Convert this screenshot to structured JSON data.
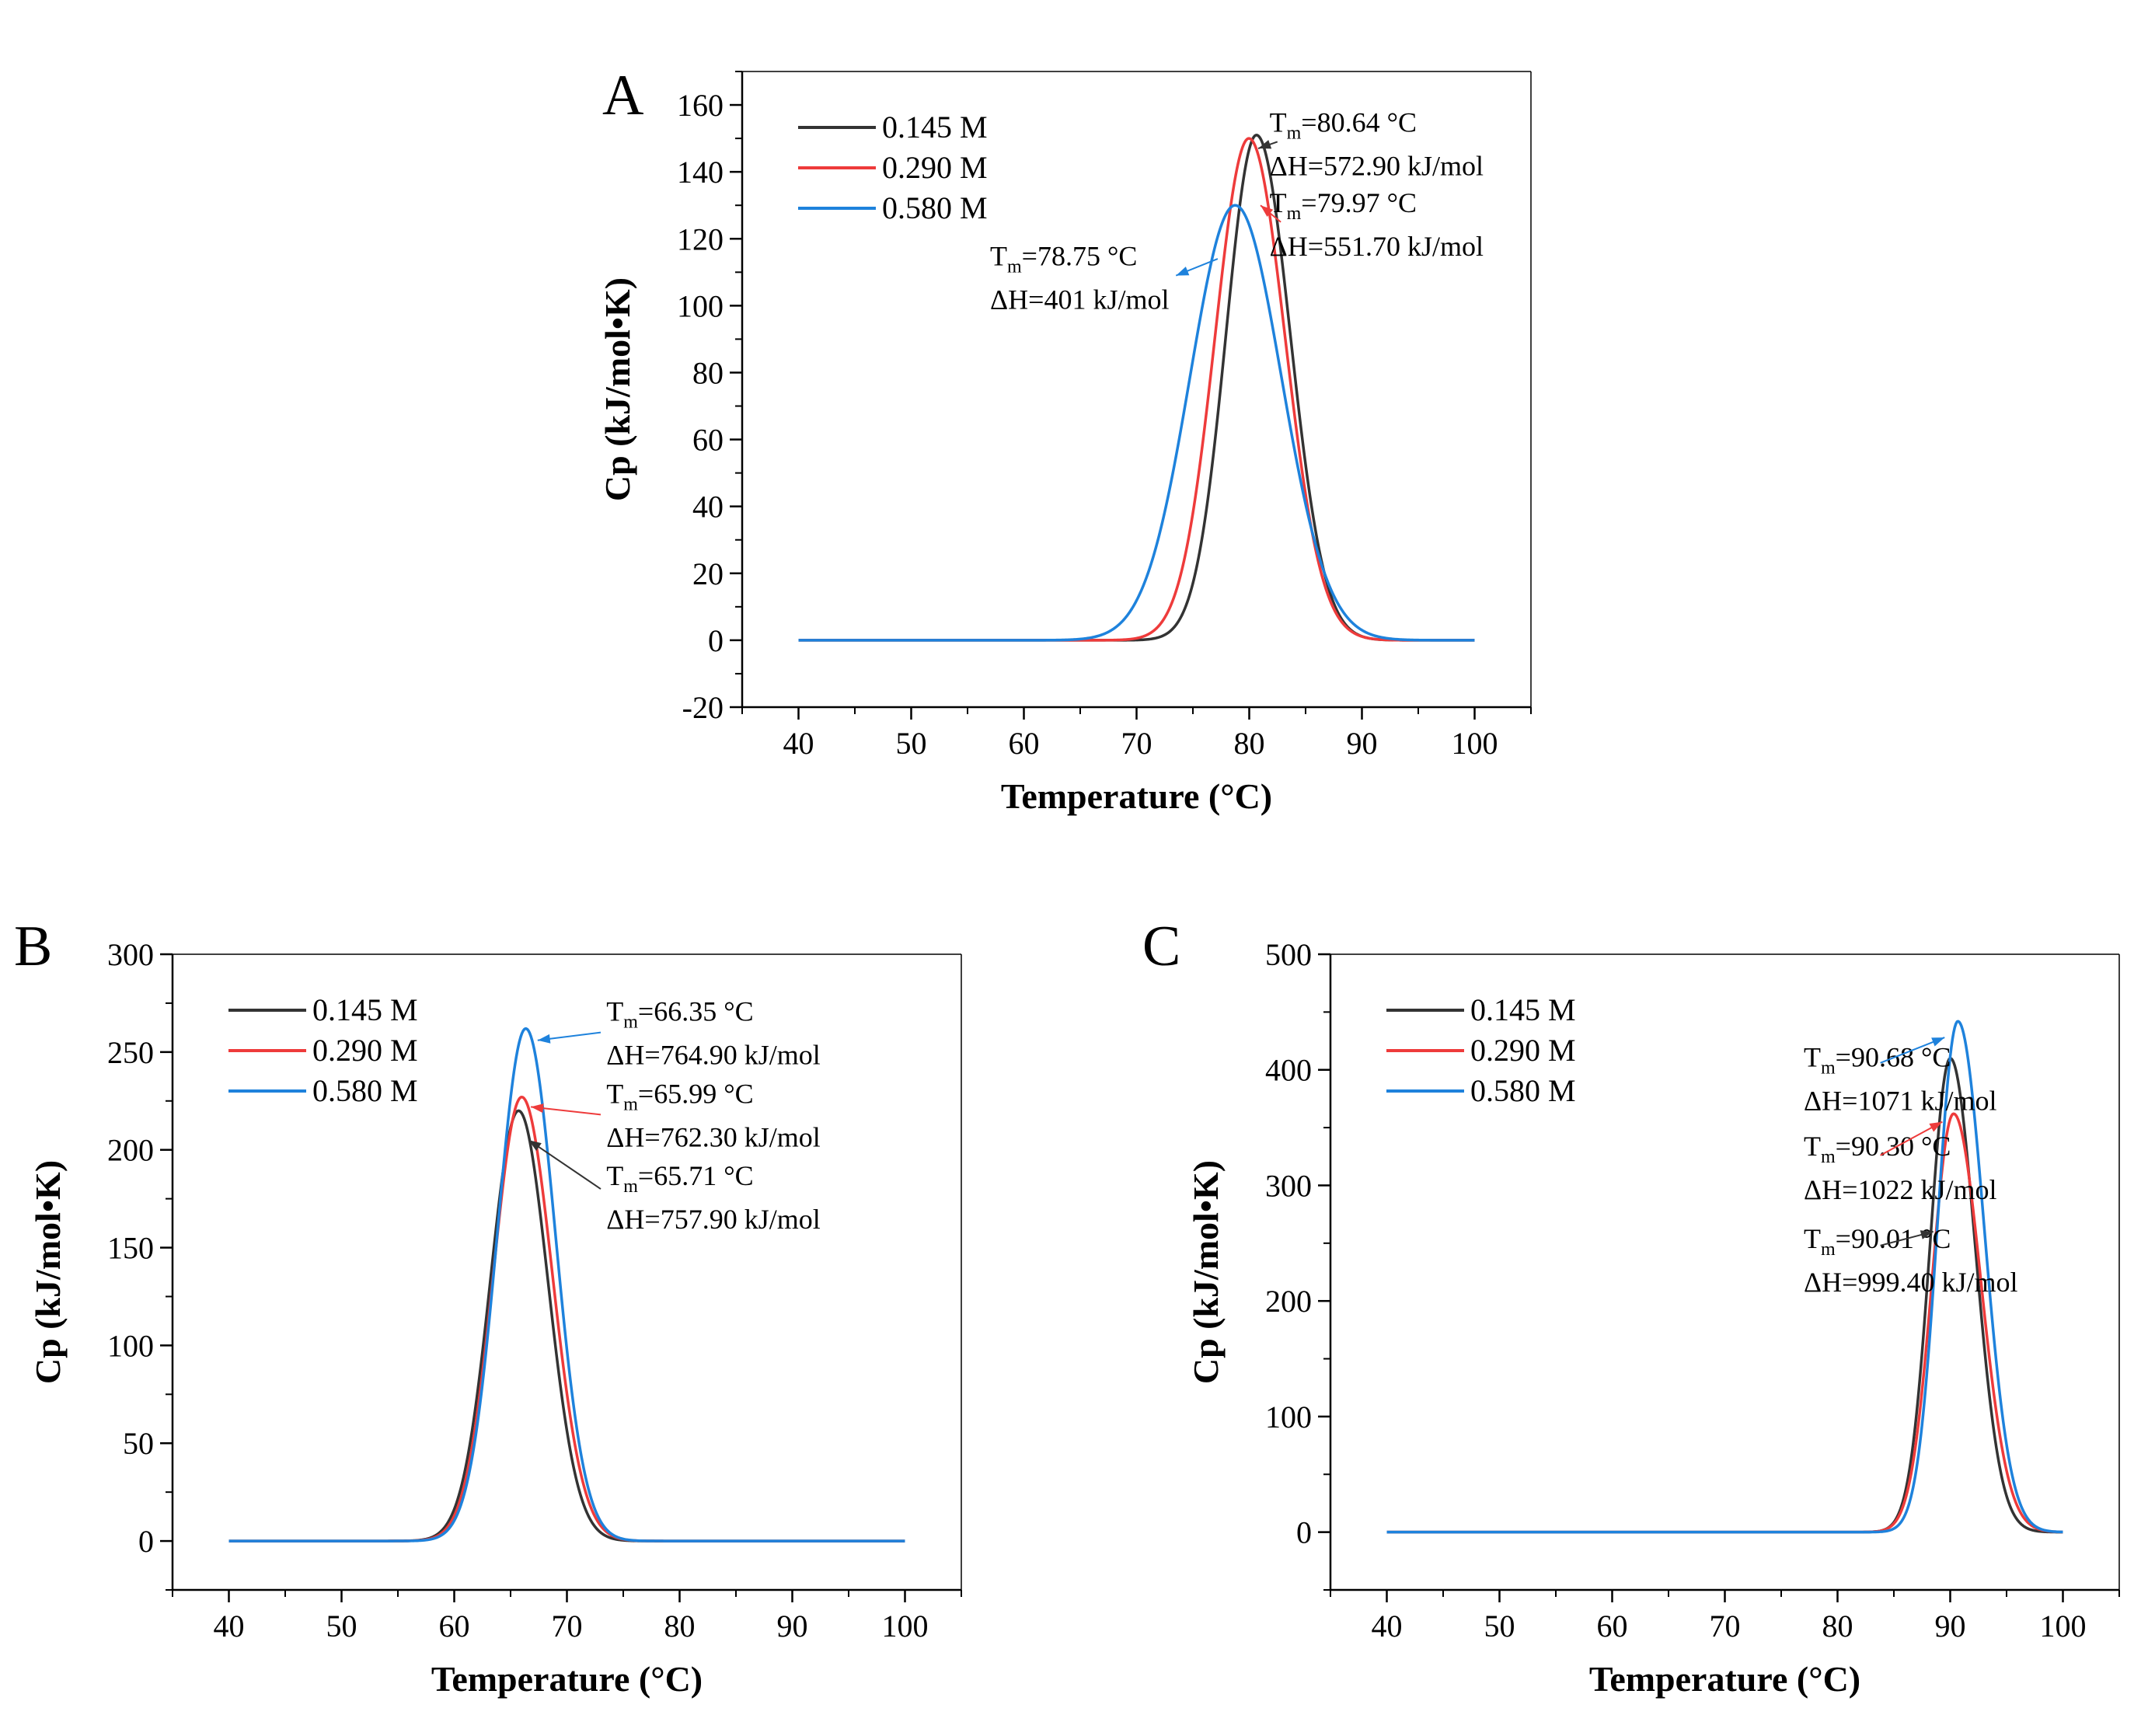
{
  "figure": {
    "colors": {
      "black": "#333333",
      "red": "#ee3b3b",
      "blue": "#1e82dc"
    }
  },
  "chart_data": [
    {
      "type": "line",
      "panel": "A",
      "title": "",
      "xlabel": "Temperature (°C)",
      "ylabel": "Cp (kJ/mol•K)",
      "xlim": [
        35,
        105
      ],
      "ylim": [
        -20,
        170
      ],
      "xticks": [
        40,
        50,
        60,
        70,
        80,
        90,
        100
      ],
      "yticks": [
        -20,
        0,
        20,
        40,
        60,
        80,
        100,
        120,
        140,
        160
      ],
      "legend_position": "top-left",
      "series": [
        {
          "name": "0.145 M",
          "color": "#333333",
          "peak_x": 80.64,
          "peak_y": 151,
          "width_left": 2.7,
          "width_right": 3.0,
          "x_range": [
            40,
            100
          ]
        },
        {
          "name": "0.290 M",
          "color": "#ee3b3b",
          "peak_x": 79.97,
          "peak_y": 150,
          "width_left": 3.0,
          "width_right": 3.2,
          "x_range": [
            40,
            100
          ]
        },
        {
          "name": "0.580 M",
          "color": "#1e82dc",
          "peak_x": 78.75,
          "peak_y": 130,
          "width_left": 4.0,
          "width_right": 4.1,
          "x_range": [
            40,
            100
          ]
        }
      ],
      "annotations": [
        {
          "series": "0.145 M",
          "tm_prefix": "T",
          "tm_sub": "m",
          "tm_value": "=80.64 °C",
          "dh": "ΔH=572.90 kJ/mol",
          "color": "#333333",
          "text_x": 81.8,
          "text_y": 152,
          "arrow_from": [
            82.5,
            149
          ],
          "arrow_to": [
            80.8,
            147
          ],
          "anchor": "start"
        },
        {
          "series": "0.290 M",
          "tm_prefix": "T",
          "tm_sub": "m",
          "tm_value": "=79.97 °C",
          "dh": "ΔH=551.70 kJ/mol",
          "color": "#ee3b3b",
          "text_x": 81.8,
          "text_y": 128,
          "arrow_from": [
            82.8,
            125
          ],
          "arrow_to": [
            81.0,
            130
          ],
          "anchor": "start"
        },
        {
          "series": "0.580 M",
          "tm_prefix": "T",
          "tm_sub": "m",
          "tm_value": "=78.75 °C",
          "dh": "ΔH=401 kJ/mol",
          "color": "#1e82dc",
          "text_x": 57.0,
          "text_y": 112,
          "arrow_from": [
            77.2,
            114
          ],
          "arrow_to": [
            73.5,
            109
          ],
          "anchor": "start"
        }
      ]
    },
    {
      "type": "line",
      "panel": "B",
      "title": "",
      "xlabel": "Temperature (°C)",
      "ylabel": "Cp (kJ/mol•K)",
      "xlim": [
        35,
        105
      ],
      "ylim": [
        -25,
        300
      ],
      "xticks": [
        40,
        50,
        60,
        70,
        80,
        90,
        100
      ],
      "yticks": [
        0,
        50,
        100,
        150,
        200,
        250,
        300
      ],
      "legend_position": "top-left",
      "series": [
        {
          "name": "0.145 M",
          "color": "#333333",
          "peak_x": 65.71,
          "peak_y": 220,
          "width_left": 2.5,
          "width_right": 2.6,
          "x_range": [
            40,
            100
          ]
        },
        {
          "name": "0.290 M",
          "color": "#ee3b3b",
          "peak_x": 65.99,
          "peak_y": 227,
          "width_left": 2.5,
          "width_right": 2.7,
          "x_range": [
            40,
            100
          ]
        },
        {
          "name": "0.580 M",
          "color": "#1e82dc",
          "peak_x": 66.35,
          "peak_y": 262,
          "width_left": 2.5,
          "width_right": 2.6,
          "x_range": [
            40,
            100
          ]
        }
      ],
      "annotations": [
        {
          "series": "0.580 M",
          "tm_prefix": "T",
          "tm_sub": "m",
          "tm_value": "=66.35 °C",
          "dh": "ΔH=764.90 kJ/mol",
          "color": "#1e82dc",
          "text_x": 73.5,
          "text_y": 266,
          "arrow_from": [
            73.0,
            260
          ],
          "arrow_to": [
            67.4,
            256
          ],
          "anchor": "start"
        },
        {
          "series": "0.290 M",
          "tm_prefix": "T",
          "tm_sub": "m",
          "tm_value": "=65.99 °C",
          "dh": "ΔH=762.30 kJ/mol",
          "color": "#ee3b3b",
          "text_x": 73.5,
          "text_y": 224,
          "arrow_from": [
            73.0,
            218
          ],
          "arrow_to": [
            66.8,
            222
          ],
          "anchor": "start"
        },
        {
          "series": "0.145 M",
          "tm_prefix": "T",
          "tm_sub": "m",
          "tm_value": "=65.71 °C",
          "dh": "ΔH=757.90 kJ/mol",
          "color": "#333333",
          "text_x": 73.5,
          "text_y": 182,
          "arrow_from": [
            73.0,
            180
          ],
          "arrow_to": [
            66.6,
            205
          ],
          "anchor": "start"
        }
      ]
    },
    {
      "type": "line",
      "panel": "C",
      "title": "",
      "xlabel": "Temperature (°C)",
      "ylabel": "Cp (kJ/mol•K)",
      "xlim": [
        35,
        105
      ],
      "ylim": [
        -50,
        500
      ],
      "xticks": [
        40,
        50,
        60,
        70,
        80,
        90,
        100
      ],
      "yticks": [
        0,
        100,
        200,
        300,
        400,
        500
      ],
      "legend_position": "top-left",
      "series": [
        {
          "name": "0.145 M",
          "color": "#333333",
          "peak_x": 90.01,
          "peak_y": 410,
          "width_left": 1.8,
          "width_right": 2.2,
          "x_range": [
            40,
            100
          ]
        },
        {
          "name": "0.290 M",
          "color": "#ee3b3b",
          "peak_x": 90.3,
          "peak_y": 362,
          "width_left": 1.9,
          "width_right": 2.4,
          "x_range": [
            40,
            100
          ]
        },
        {
          "name": "0.580 M",
          "color": "#1e82dc",
          "peak_x": 90.68,
          "peak_y": 442,
          "width_left": 1.8,
          "width_right": 2.3,
          "x_range": [
            40,
            100
          ]
        }
      ],
      "annotations": [
        {
          "series": "0.580 M",
          "tm_prefix": "T",
          "tm_sub": "m",
          "tm_value": "=90.68 °C",
          "dh": "ΔH=1071 kJ/mol",
          "color": "#1e82dc",
          "text_x": 77.0,
          "text_y": 403,
          "arrow_from": [
            83.8,
            406
          ],
          "arrow_to": [
            89.5,
            428
          ],
          "anchor": "start"
        },
        {
          "series": "0.290 M",
          "tm_prefix": "T",
          "tm_sub": "m",
          "tm_value": "=90.30 °C",
          "dh": "ΔH=1022 kJ/mol",
          "color": "#ee3b3b",
          "text_x": 77.0,
          "text_y": 326,
          "arrow_from": [
            83.8,
            326
          ],
          "arrow_to": [
            89.3,
            355
          ],
          "anchor": "start"
        },
        {
          "series": "0.145 M",
          "tm_prefix": "T",
          "tm_sub": "m",
          "tm_value": "=90.01 °C",
          "dh": "ΔH=999.40 kJ/mol",
          "color": "#333333",
          "text_x": 77.0,
          "text_y": 246,
          "arrow_from": [
            83.8,
            248
          ],
          "arrow_to": [
            88.5,
            260
          ],
          "anchor": "start"
        }
      ]
    }
  ]
}
